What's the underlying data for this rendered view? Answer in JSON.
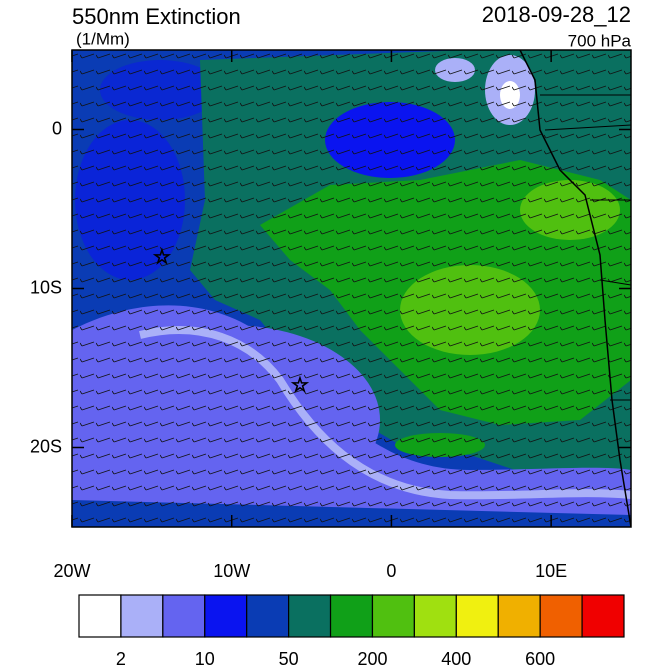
{
  "map": {
    "title": "550nm Extinction",
    "units": "(1/Mm)",
    "time": "2018-09-28_12",
    "level": "700 hPa",
    "xlim": [
      -20,
      15
    ],
    "ylim": [
      -25,
      5
    ],
    "xticks": [
      {
        "value": -20,
        "label": "20W"
      },
      {
        "value": -10,
        "label": "10W"
      },
      0,
      {
        "value": 10,
        "label": "10E"
      }
    ],
    "yticks": [
      0,
      {
        "value": -10,
        "label": "10S"
      },
      {
        "value": -20,
        "label": "20S"
      }
    ]
  },
  "colorbar": {
    "colors": [
      "#ffffff",
      "#aab0f8",
      "#6464f0",
      "#0a14f0",
      "#0a3cb4",
      "#0a7060",
      "#10a018",
      "#50c010",
      "#a0e010",
      "#f0f010",
      "#f0b000",
      "#f06000",
      "#f00000"
    ],
    "labels": [
      2,
      10,
      50,
      200,
      400,
      600
    ]
  }
}
